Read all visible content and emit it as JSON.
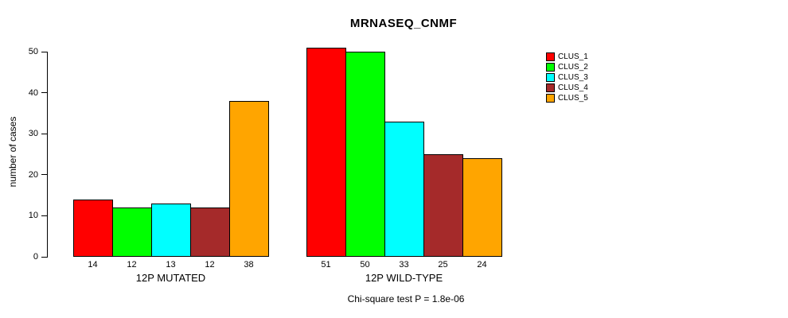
{
  "chart_data": {
    "type": "bar",
    "title": "MRNASEQ_CNMF",
    "ylabel": "number of cases",
    "xlabel": "",
    "footer": "Chi-square test P = 1.8e-06",
    "ylim": [
      0,
      50
    ],
    "yticks": [
      0,
      10,
      20,
      30,
      40,
      50
    ],
    "grid": false,
    "legend_position": "right",
    "series": [
      {
        "name": "CLUS_1",
        "color": "#FF0000"
      },
      {
        "name": "CLUS_2",
        "color": "#00FF00"
      },
      {
        "name": "CLUS_3",
        "color": "#00FFFF"
      },
      {
        "name": "CLUS_4",
        "color": "#A52A2A"
      },
      {
        "name": "CLUS_5",
        "color": "#FFA500"
      }
    ],
    "groups": [
      {
        "label": "12P MUTATED",
        "values": [
          14,
          12,
          13,
          12,
          38
        ]
      },
      {
        "label": "12P WILD-TYPE",
        "values": [
          51,
          50,
          33,
          25,
          24
        ]
      }
    ]
  }
}
